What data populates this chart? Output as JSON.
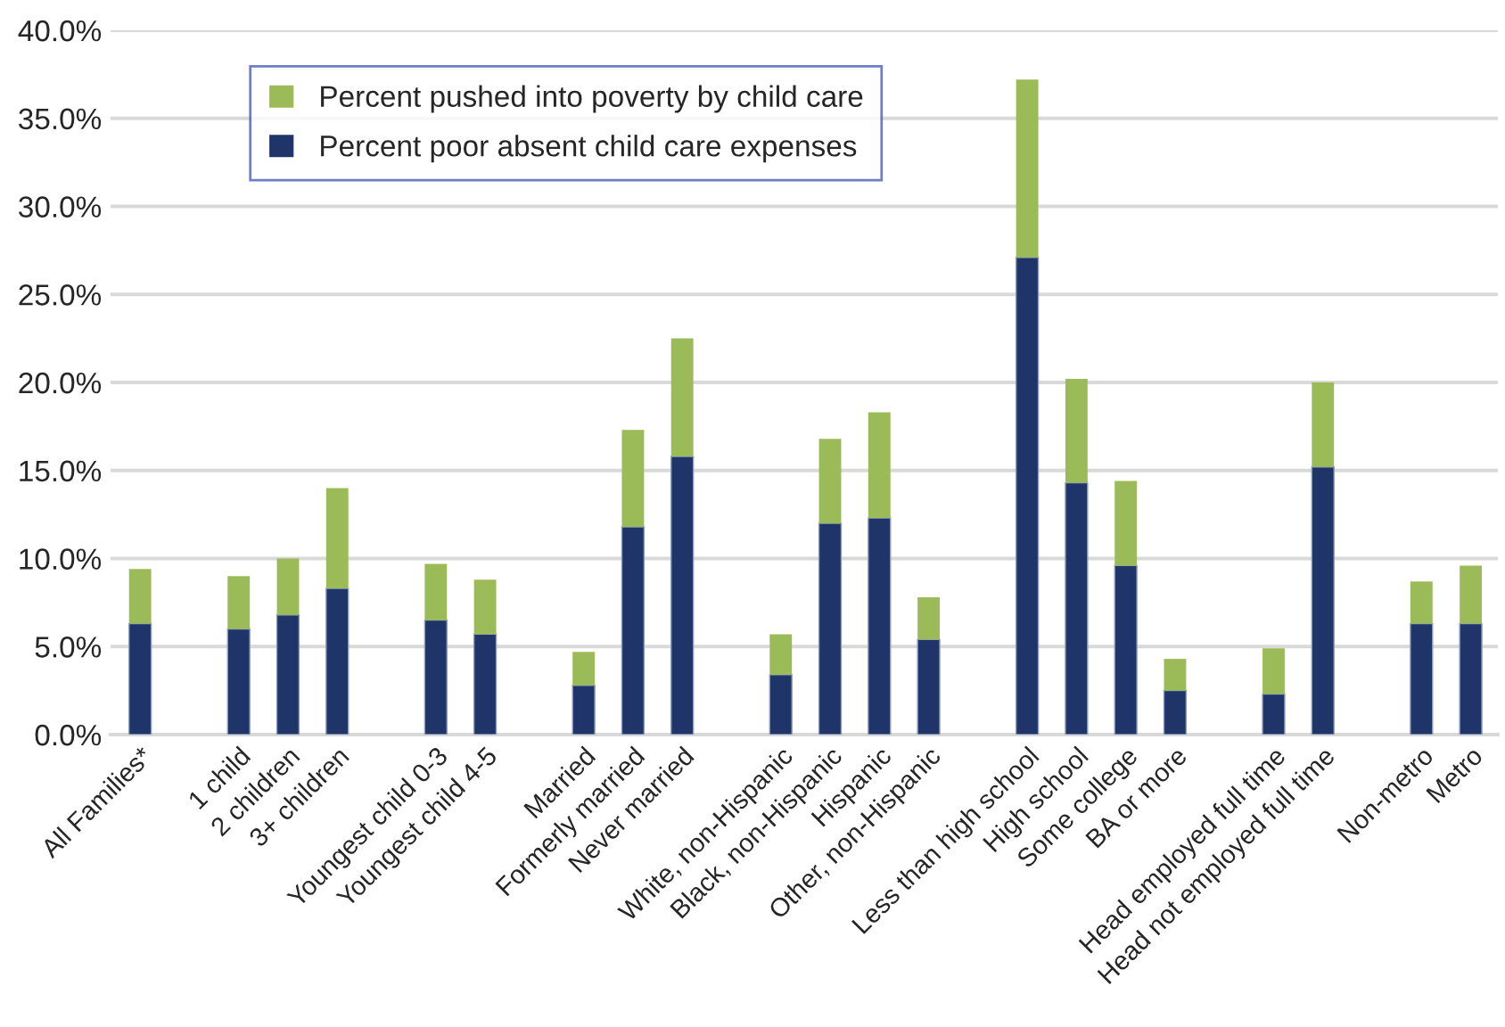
{
  "chart_data": {
    "type": "bar",
    "stacked": true,
    "categories": [
      "All Families*",
      null,
      "1 child",
      "2 children",
      "3+ children",
      null,
      "Youngest child 0-3",
      "Youngest child 4-5",
      null,
      "Married",
      "Formerly married",
      "Never married",
      null,
      "White, non-Hispanic",
      "Black, non-Hispanic",
      "Hispanic",
      "Other, non-Hispanic",
      null,
      "Less than high school",
      "High school",
      "Some college",
      "BA or more",
      null,
      "Head employed full time",
      "Head not employed full time",
      null,
      "Non-metro",
      "Metro"
    ],
    "series": [
      {
        "name": "Percent poor absent child care expenses",
        "color": "#1f3569",
        "values": [
          6.3,
          null,
          6.0,
          6.8,
          8.3,
          null,
          6.5,
          5.7,
          null,
          2.8,
          11.8,
          15.8,
          null,
          3.4,
          12.0,
          12.3,
          5.4,
          null,
          27.1,
          14.3,
          9.6,
          2.5,
          null,
          2.3,
          15.2,
          null,
          6.3,
          6.3
        ]
      },
      {
        "name": "Percent pushed into poverty by child care",
        "color": "#9bbb59",
        "values": [
          3.1,
          null,
          3.0,
          3.2,
          5.7,
          null,
          3.2,
          3.1,
          null,
          1.9,
          5.5,
          6.7,
          null,
          2.3,
          4.8,
          6.0,
          2.4,
          null,
          10.1,
          5.9,
          4.8,
          1.8,
          null,
          2.6,
          4.8,
          null,
          2.4,
          3.3
        ]
      }
    ],
    "ylim": [
      0,
      40
    ],
    "yticks": [
      {
        "value": 0,
        "label": "0.0%"
      },
      {
        "value": 5,
        "label": "5.0%"
      },
      {
        "value": 10,
        "label": "10.0%"
      },
      {
        "value": 15,
        "label": "15.0%"
      },
      {
        "value": 20,
        "label": "20.0%"
      },
      {
        "value": 25,
        "label": "25.0%"
      },
      {
        "value": 30,
        "label": "30.0%"
      },
      {
        "value": 35,
        "label": "35.0%"
      },
      {
        "value": 40,
        "label": "40.0%"
      }
    ],
    "grid": "y",
    "legend": "top left"
  }
}
